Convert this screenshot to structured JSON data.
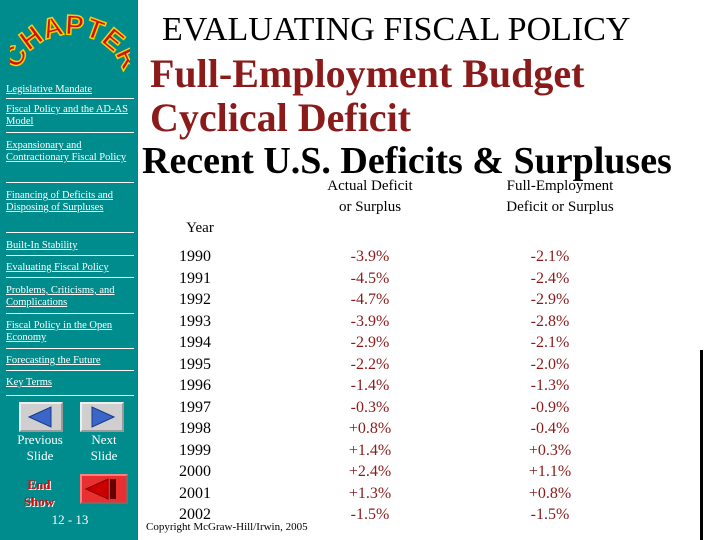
{
  "sidebar": {
    "logo_text": "CHAPTER",
    "links": [
      {
        "label": "Legislative Mandate"
      },
      {
        "label": "Fiscal Policy and the AD-AS Model"
      },
      {
        "label": "Expansionary and Contractionary Fiscal Policy"
      },
      {
        "label": "Financing of Deficits and Disposing of Surpluses"
      },
      {
        "label": "Built-In Stability"
      },
      {
        "label": "Evaluating Fiscal Policy"
      },
      {
        "label": "Problems, Criticisms, and Complications"
      },
      {
        "label": "Fiscal Policy in the Open Economy"
      },
      {
        "label": "Forecasting the Future"
      },
      {
        "label": "Key Terms"
      }
    ],
    "previous_label": "Previous Slide",
    "next_label": "Next Slide",
    "end_label": "End Show",
    "page_number": "12 - 13"
  },
  "main": {
    "title": "EVALUATING FISCAL POLICY",
    "subtitle1": "Full-Employment Budget",
    "subtitle2": "Cyclical Deficit",
    "subtitle3": "Recent U.S. Deficits & Surpluses",
    "copyright": "Copyright McGraw-Hill/Irwin, 2005"
  },
  "table": {
    "headers": {
      "year": "Year",
      "actual": "Actual Deficit or Surplus",
      "full": "Full-Employment Deficit or Surplus"
    },
    "years": [
      "1990",
      "1991",
      "1992",
      "1993",
      "1994",
      "1995",
      "1996",
      "1997",
      "1998",
      "1999",
      "2000",
      "2001",
      "2002"
    ],
    "actual": [
      "-3.9%",
      "-4.5%",
      "-4.7%",
      "-3.9%",
      "-2.9%",
      "-2.2%",
      "-1.4%",
      "-0.3%",
      "+0.8%",
      "+1.4%",
      "+2.4%",
      "+1.3%",
      "-1.5%"
    ],
    "full_employment": [
      "-2.1%",
      "-2.4%",
      "-2.9%",
      "-2.8%",
      "-2.1%",
      "-2.0%",
      "-1.3%",
      "-0.9%",
      "-0.4%",
      "+0.3%",
      "+1.1%",
      "+0.8%",
      "-1.5%"
    ]
  },
  "colors": {
    "sidebar_bg": "#008c8c",
    "accent_red": "#8b1a1a",
    "logo_red": "#cc1111",
    "logo_yellow": "#ffcc00"
  }
}
